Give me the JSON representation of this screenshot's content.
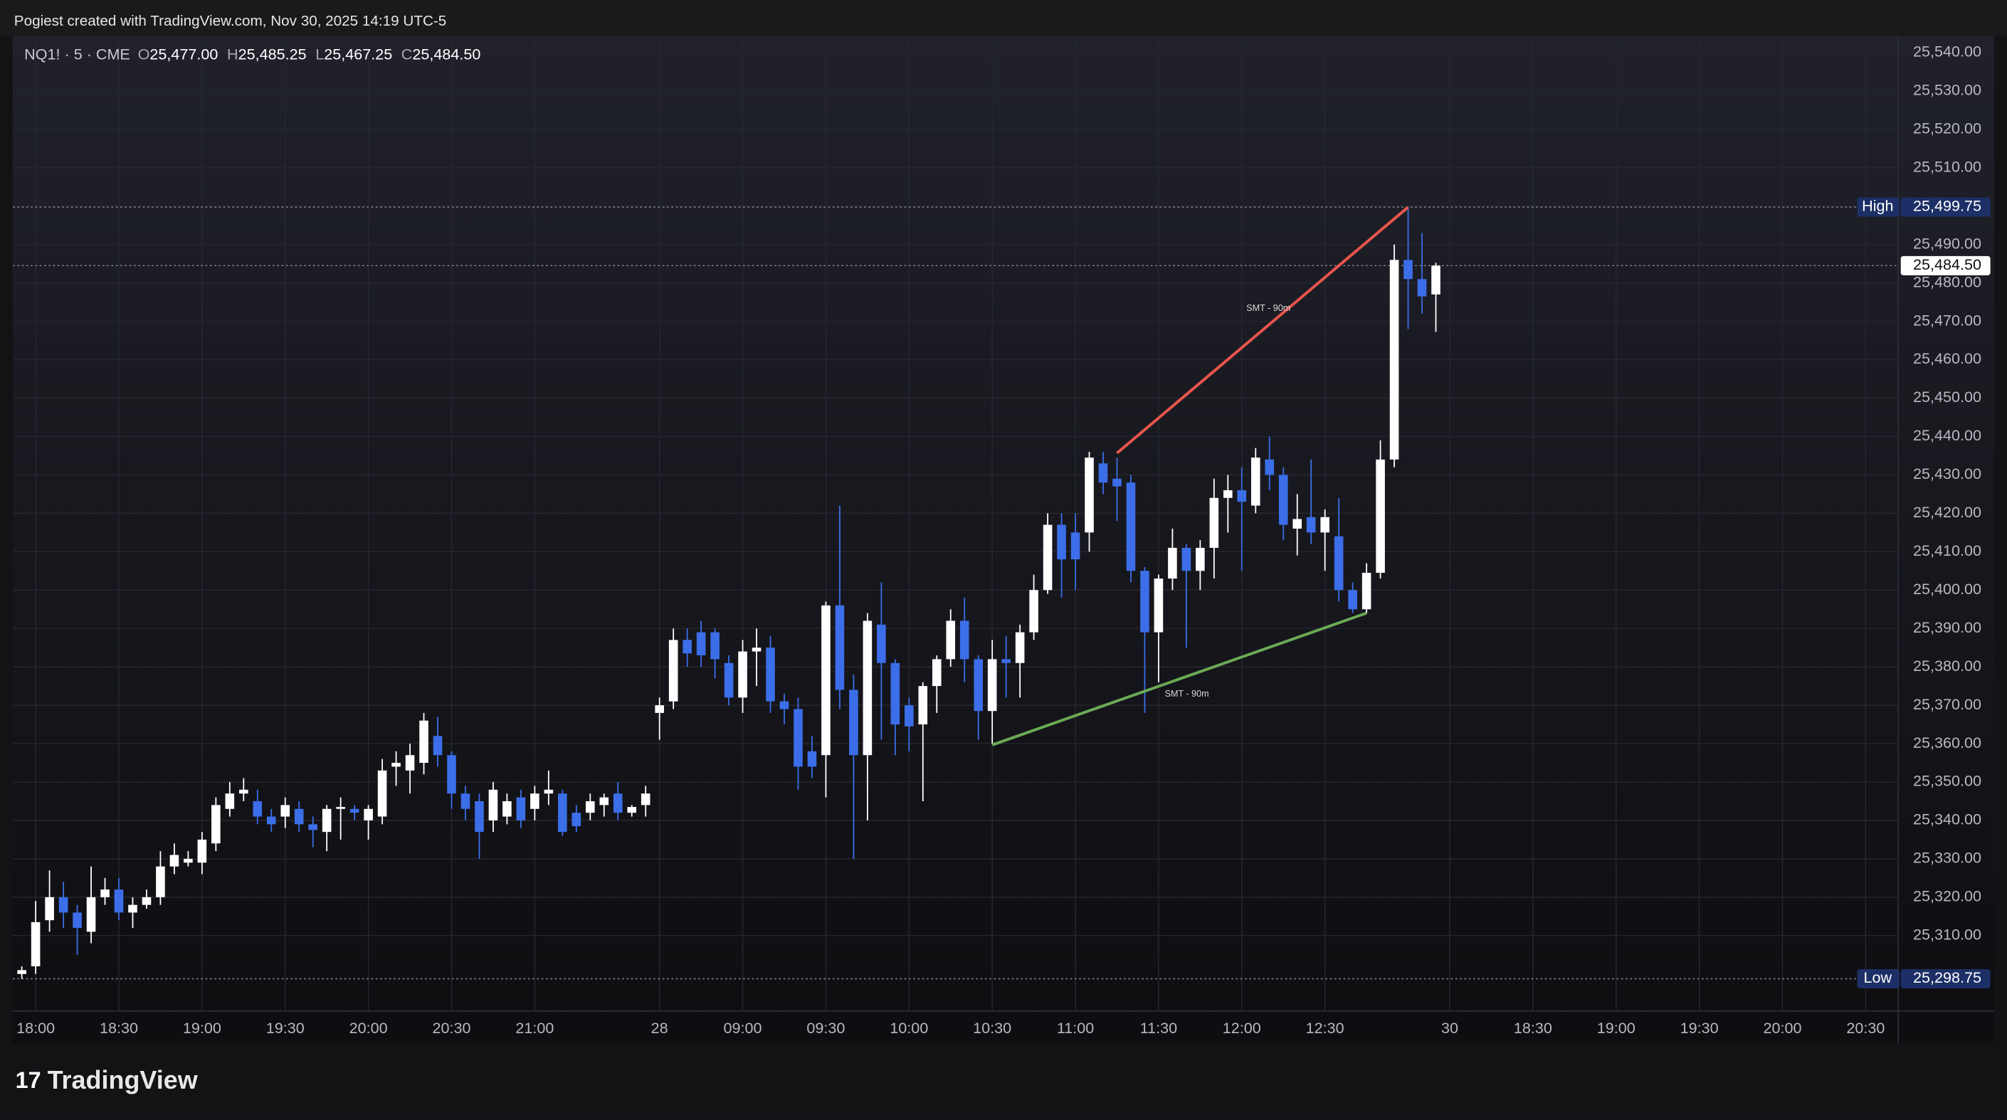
{
  "header": "Pogiest created with TradingView.com, Nov 30, 2025 14:19 UTC-5",
  "branding": "TradingView",
  "chart_data": {
    "type": "candlestick",
    "symbol": "NQ1! · 5 · CME",
    "ohlc_legend": [
      {
        "key": "O",
        "value": 25477,
        "label": "25,477.00"
      },
      {
        "key": "H",
        "value": 25485.25,
        "label": "25,485.25"
      },
      {
        "key": "L",
        "value": 25467.25,
        "label": "25,467.25"
      },
      {
        "key": "C",
        "value": 25484.5,
        "label": "25,484.50"
      }
    ],
    "up_color": "#ffffff",
    "down_color": "#3b6ee8",
    "grid": true,
    "x": [
      0,
      1,
      2,
      3,
      4,
      5,
      6,
      7,
      8,
      9,
      10,
      11,
      12,
      13,
      14,
      15,
      16,
      17,
      18,
      19,
      20,
      21,
      22,
      23,
      24,
      25,
      26,
      27,
      28,
      29,
      30,
      31,
      32,
      33,
      34,
      35,
      36,
      37,
      38,
      39,
      40,
      41,
      42,
      43,
      44,
      45,
      46,
      47,
      48,
      49,
      50,
      51,
      52,
      53,
      54,
      55,
      56,
      57,
      58,
      59,
      60,
      61,
      62,
      63,
      64,
      65,
      66,
      67,
      68,
      69,
      70,
      71,
      72,
      73,
      74,
      75,
      76,
      77,
      78,
      79,
      80,
      81,
      82,
      83,
      84,
      85,
      86,
      87,
      88,
      89,
      90,
      91,
      92,
      93,
      94,
      95,
      96,
      97,
      98,
      99,
      100,
      101,
      102
    ],
    "open": [
      25300,
      25302,
      25314,
      25320,
      25316,
      25311,
      25320,
      25322,
      25316,
      25318,
      25320,
      25328,
      25329,
      25329,
      25334,
      25343,
      25347,
      25345,
      25341,
      25341,
      25343,
      25339,
      25337,
      25343,
      25343,
      25340,
      25341,
      25354,
      25353,
      25355,
      25362,
      25357,
      25347,
      25345,
      25340,
      25341,
      25346,
      25343,
      25347,
      25347,
      25342,
      25342,
      25344,
      25347,
      25342,
      25344,
      25368,
      25371,
      25387,
      25389,
      25389,
      25381,
      25372,
      25384,
      25385,
      25371,
      25369,
      25358,
      25357,
      25396,
      25374,
      25357,
      25391,
      25381,
      25370,
      25365,
      25375,
      25382,
      25392,
      25382,
      25368.5,
      25382,
      25381,
      25389,
      25400,
      25417,
      25415,
      25415,
      25433,
      25429,
      25428,
      25405,
      25389,
      25403,
      25411,
      25405,
      25411,
      25424,
      25426,
      25422,
      25434,
      25430,
      25416,
      25419,
      25415,
      25414,
      25400,
      25395,
      25404.5,
      25434,
      25486,
      25481,
      25477
    ],
    "high": [
      25302,
      25319,
      25327,
      25324,
      25318,
      25328,
      25325,
      25325,
      25320,
      25322,
      25332,
      25334,
      25332,
      25337,
      25346,
      25350,
      25351,
      25348,
      25343,
      25346,
      25345,
      25341,
      25344,
      25346,
      25344,
      25344,
      25356,
      25358,
      25360,
      25368,
      25367,
      25358,
      25349,
      25347,
      25350,
      25347,
      25348,
      25349,
      25353,
      25348,
      25344,
      25347,
      25347,
      25350,
      25344,
      25349,
      25372,
      25390,
      25390,
      25392,
      25390,
      25383,
      25387,
      25390,
      25388,
      25373,
      25372,
      25362,
      25397,
      25422,
      25378,
      25394,
      25402,
      25382,
      25372,
      25376,
      25383,
      25395,
      25398,
      25383,
      25387,
      25388,
      25391,
      25404,
      25420,
      25420,
      25420,
      25436,
      25436,
      25434.5,
      25430,
      25406,
      25404,
      25416,
      25412,
      25413,
      25429,
      25430,
      25432,
      25437,
      25440,
      25432,
      25425,
      25434,
      25421,
      25424,
      25402,
      25407,
      25439,
      25490,
      25499.75,
      25493,
      25485.25
    ],
    "low": [
      25298.75,
      25300,
      25311,
      25312,
      25305,
      25308,
      25318,
      25314,
      25312,
      25317,
      25318,
      25326,
      25328,
      25326,
      25332,
      25341,
      25345,
      25339,
      25337,
      25338,
      25337,
      25333,
      25332,
      25335,
      25340,
      25335,
      25339,
      25349,
      25347,
      25352,
      25354,
      25343,
      25340,
      25330,
      25337,
      25339,
      25338,
      25340,
      25344,
      25336,
      25337,
      25340,
      25341,
      25340,
      25341,
      25341,
      25361,
      25369,
      25380,
      25380,
      25377,
      25370,
      25368,
      25375,
      25368,
      25365,
      25348,
      25351,
      25346,
      25369,
      25330,
      25340,
      25361,
      25357,
      25358,
      25345,
      25368,
      25380,
      25376,
      25361,
      25360,
      25372,
      25372,
      25387,
      25399,
      25398,
      25400,
      25410,
      25425,
      25418,
      25402,
      25368,
      25376,
      25400,
      25385,
      25400,
      25403,
      25415,
      25405,
      25420,
      25426,
      25413,
      25409,
      25412,
      25405,
      25397,
      25394,
      25394,
      25403,
      25432,
      25468,
      25472,
      25467.25
    ],
    "close": [
      25301,
      25313.5,
      25320,
      25316,
      25312,
      25320,
      25322,
      25316,
      25318,
      25320,
      25328,
      25331,
      25330,
      25335,
      25344,
      25347,
      25348,
      25341,
      25339,
      25344,
      25339,
      25337.5,
      25343,
      25343.5,
      25342,
      25343,
      25353,
      25355,
      25357,
      25366,
      25357,
      25347,
      25343,
      25337,
      25348,
      25345,
      25340,
      25347,
      25348,
      25337,
      25338.5,
      25345,
      25346,
      25342,
      25343.5,
      25347,
      25370,
      25387,
      25383.5,
      25383,
      25382,
      25372,
      25384,
      25385,
      25371,
      25369,
      25354,
      25354,
      25396,
      25374,
      25357,
      25392,
      25381,
      25365,
      25364.5,
      25375,
      25382,
      25392,
      25382,
      25368.5,
      25382,
      25381,
      25389,
      25400,
      25417,
      25408,
      25408,
      25434.5,
      25428,
      25427,
      25405,
      25389,
      25403,
      25411,
      25405,
      25411,
      25424,
      25426,
      25423,
      25434.5,
      25430,
      25417,
      25418.5,
      25415,
      25419,
      25400,
      25395,
      25404.5,
      25434,
      25486,
      25481,
      25476.5,
      25484.5
    ],
    "xlim": [
      -0.65,
      135.35
    ],
    "ylim": [
      25290.33,
      25544.33
    ],
    "xticks": [
      {
        "value": 1,
        "label": "18:00"
      },
      {
        "value": 7,
        "label": "18:30"
      },
      {
        "value": 13,
        "label": "19:00"
      },
      {
        "value": 19,
        "label": "19:30"
      },
      {
        "value": 25,
        "label": "20:00"
      },
      {
        "value": 31,
        "label": "20:30"
      },
      {
        "value": 37,
        "label": "21:00"
      },
      {
        "value": 46,
        "label": "28"
      },
      {
        "value": 52,
        "label": "09:00"
      },
      {
        "value": 58,
        "label": "09:30"
      },
      {
        "value": 64,
        "label": "10:00"
      },
      {
        "value": 70,
        "label": "10:30"
      },
      {
        "value": 76,
        "label": "11:00"
      },
      {
        "value": 82,
        "label": "11:30"
      },
      {
        "value": 88,
        "label": "12:00"
      },
      {
        "value": 94,
        "label": "12:30"
      },
      {
        "value": 103,
        "label": "30"
      },
      {
        "value": 109,
        "label": "18:30"
      },
      {
        "value": 115,
        "label": "19:00"
      },
      {
        "value": 121,
        "label": "19:30"
      },
      {
        "value": 127,
        "label": "20:00"
      },
      {
        "value": 133,
        "label": "20:30"
      }
    ],
    "yticks": [
      {
        "value": 25310,
        "label": "25,310.00"
      },
      {
        "value": 25320,
        "label": "25,320.00"
      },
      {
        "value": 25330,
        "label": "25,330.00"
      },
      {
        "value": 25340,
        "label": "25,340.00"
      },
      {
        "value": 25350,
        "label": "25,350.00"
      },
      {
        "value": 25360,
        "label": "25,360.00"
      },
      {
        "value": 25370,
        "label": "25,370.00"
      },
      {
        "value": 25380,
        "label": "25,380.00"
      },
      {
        "value": 25390,
        "label": "25,390.00"
      },
      {
        "value": 25400,
        "label": "25,400.00"
      },
      {
        "value": 25410,
        "label": "25,410.00"
      },
      {
        "value": 25420,
        "label": "25,420.00"
      },
      {
        "value": 25430,
        "label": "25,430.00"
      },
      {
        "value": 25440,
        "label": "25,440.00"
      },
      {
        "value": 25450,
        "label": "25,450.00"
      },
      {
        "value": 25460,
        "label": "25,460.00"
      },
      {
        "value": 25470,
        "label": "25,470.00"
      },
      {
        "value": 25480,
        "label": "25,480.00"
      },
      {
        "value": 25490,
        "label": "25,490.00"
      },
      {
        "value": 25500,
        "label": "25,500.00"
      },
      {
        "value": 25510,
        "label": "25,510.00"
      },
      {
        "value": 25520,
        "label": "25,520.00"
      },
      {
        "value": 25530,
        "label": "25,530.00"
      },
      {
        "value": 25540,
        "label": "25,540.00"
      }
    ],
    "price_lines": [
      {
        "name": "High",
        "value": 25499.75,
        "label": "25,499.75",
        "color": "#1c2f66"
      },
      {
        "value": 25484.5,
        "label": "25,484.50",
        "color": "#ffffff"
      },
      {
        "name": "Low",
        "value": 25298.75,
        "label": "25,298.75",
        "color": "#1c2f66"
      }
    ],
    "drawings": [
      {
        "label": "SMT - 90m",
        "color": "#e8554c",
        "x": [
          79,
          100
        ],
        "y": [
          25435.67,
          25499.75
        ]
      },
      {
        "label": "SMT - 90m",
        "color": "#6aaa55",
        "x": [
          70,
          97
        ],
        "y": [
          25359.67,
          25394
        ]
      }
    ]
  }
}
